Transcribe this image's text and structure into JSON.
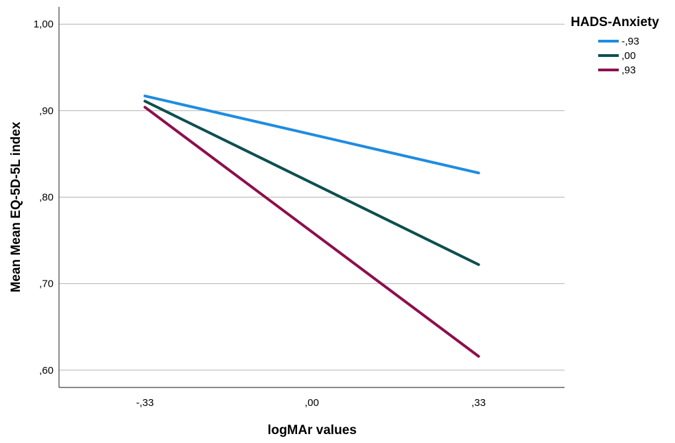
{
  "chart_data": {
    "type": "line",
    "xlabel": "logMAr values",
    "ylabel": "Mean Mean EQ-5D-5L index",
    "x": [
      -0.33,
      0.33
    ],
    "x_tick_labels": [
      "-,33",
      ",00",
      ",33"
    ],
    "x_ticks": [
      -0.33,
      0.0,
      0.33
    ],
    "xlim": [
      -0.5,
      0.5
    ],
    "y_tick_labels": [
      ",60",
      ",70",
      ",80",
      ",90",
      "1,00"
    ],
    "y_ticks": [
      0.6,
      0.7,
      0.8,
      0.9,
      1.0
    ],
    "ylim": [
      0.58,
      1.02
    ],
    "grid": "horizontal",
    "legend": {
      "title": "HADS-Anxiety",
      "placement": "top-right"
    },
    "series": [
      {
        "name": "-,93",
        "values": [
          0.917,
          0.828
        ],
        "color": "#1f8ce0"
      },
      {
        "name": ",00",
        "values": [
          0.911,
          0.722
        ],
        "color": "#0d4f4f"
      },
      {
        "name": ",93",
        "values": [
          0.904,
          0.616
        ],
        "color": "#8c0f4d"
      }
    ]
  }
}
